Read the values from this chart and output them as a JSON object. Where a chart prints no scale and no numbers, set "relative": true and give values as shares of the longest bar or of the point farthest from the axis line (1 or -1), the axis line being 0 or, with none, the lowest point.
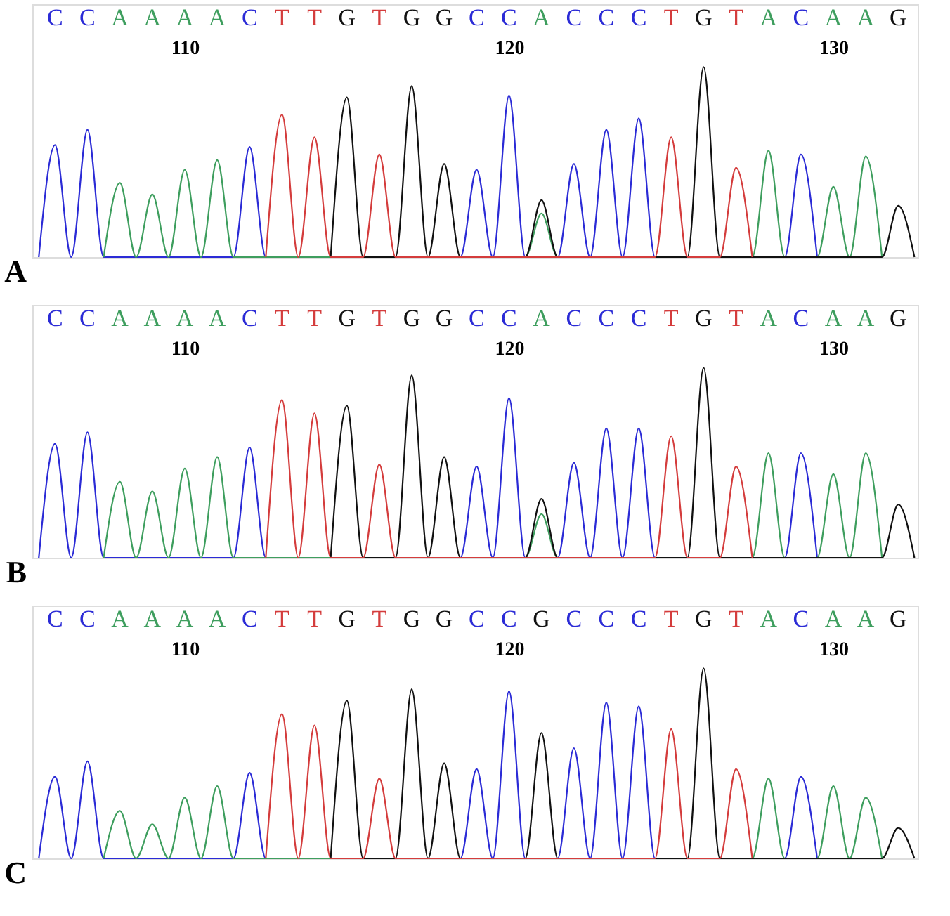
{
  "chart_data": [
    {
      "type": "line",
      "title": "A",
      "relative": true,
      "xlim": [
        105.3,
        132.6
      ],
      "xticks": [
        110,
        120,
        130
      ],
      "marker": "none",
      "line_style": "solid",
      "annotations": [
        "C",
        "C",
        "A",
        "A",
        "A",
        "A",
        "C",
        "T",
        "T",
        "G",
        "T",
        "G",
        "G",
        "C",
        "C",
        "A",
        "C",
        "C",
        "C",
        "T",
        "G",
        "T",
        "A",
        "C",
        "A",
        "A",
        "G"
      ],
      "series": [
        {
          "color": "#2b2bd6",
          "x": [
            105.5,
            106,
            106.5,
            107,
            107.5,
            111.5,
            112,
            112.5,
            118.5,
            119,
            119.5,
            120,
            120.5,
            121.5,
            122,
            122.5,
            123,
            123.5,
            124,
            124.5,
            128.5,
            129,
            129.5
          ],
          "values": [
            0,
            0.59,
            0,
            0.67,
            0,
            0,
            0.58,
            0,
            0,
            0.46,
            0,
            0.85,
            0,
            0,
            0.49,
            0,
            0.67,
            0,
            0.73,
            0,
            0,
            0.54,
            0
          ]
        },
        {
          "color": "#3e9e5e",
          "x": [
            107.5,
            108,
            108.5,
            109,
            109.5,
            110,
            110.5,
            111,
            111.5,
            120.5,
            121,
            121.5,
            127.5,
            128,
            128.5,
            129.5,
            130,
            130.5,
            131,
            131.5
          ],
          "values": [
            0,
            0.39,
            0,
            0.33,
            0,
            0.46,
            0,
            0.51,
            0,
            0,
            0.23,
            0,
            0,
            0.56,
            0,
            0,
            0.37,
            0,
            0.53,
            0
          ]
        },
        {
          "color": "#111111",
          "x": [
            114.5,
            115,
            115.5,
            116.5,
            117,
            117.5,
            118,
            118.5,
            120.5,
            121,
            121.5,
            125.5,
            126,
            126.5,
            131.5,
            132,
            132.5
          ],
          "values": [
            0,
            0.84,
            0,
            0,
            0.9,
            0,
            0.49,
            0,
            0,
            0.3,
            0,
            0,
            1,
            0,
            0,
            0.27,
            0
          ]
        },
        {
          "color": "#d43c3c",
          "x": [
            112.5,
            113,
            113.5,
            114,
            114.5,
            115.5,
            116,
            116.5,
            124.5,
            125,
            125.5,
            126.5,
            127,
            127.5
          ],
          "values": [
            0,
            0.75,
            0,
            0.63,
            0,
            0,
            0.54,
            0,
            0,
            0.63,
            0,
            0,
            0.47,
            0
          ]
        }
      ]
    },
    {
      "type": "line",
      "title": "B",
      "relative": true,
      "xlim": [
        105.3,
        132.6
      ],
      "xticks": [
        110,
        120,
        130
      ],
      "marker": "none",
      "line_style": "solid",
      "annotations": [
        "C",
        "C",
        "A",
        "A",
        "A",
        "A",
        "C",
        "T",
        "T",
        "G",
        "T",
        "G",
        "G",
        "C",
        "C",
        "A",
        "C",
        "C",
        "C",
        "T",
        "G",
        "T",
        "A",
        "C",
        "A",
        "A",
        "G"
      ],
      "series": [
        {
          "color": "#2b2bd6",
          "x": [
            105.5,
            106,
            106.5,
            107,
            107.5,
            111.5,
            112,
            112.5,
            118.5,
            119,
            119.5,
            120,
            120.5,
            121.5,
            122,
            122.5,
            123,
            123.5,
            124,
            124.5,
            128.5,
            129,
            129.5
          ],
          "values": [
            0,
            0.6,
            0,
            0.66,
            0,
            0,
            0.58,
            0,
            0,
            0.48,
            0,
            0.84,
            0,
            0,
            0.5,
            0,
            0.68,
            0,
            0.68,
            0,
            0,
            0.55,
            0
          ]
        },
        {
          "color": "#3e9e5e",
          "x": [
            107.5,
            108,
            108.5,
            109,
            109.5,
            110,
            110.5,
            111,
            111.5,
            120.5,
            121,
            121.5,
            127.5,
            128,
            128.5,
            129.5,
            130,
            130.5,
            131,
            131.5
          ],
          "values": [
            0,
            0.4,
            0,
            0.35,
            0,
            0.47,
            0,
            0.53,
            0,
            0,
            0.23,
            0,
            0,
            0.55,
            0,
            0,
            0.44,
            0,
            0.55,
            0
          ]
        },
        {
          "color": "#111111",
          "x": [
            114.5,
            115,
            115.5,
            116.5,
            117,
            117.5,
            118,
            118.5,
            120.5,
            121,
            121.5,
            125.5,
            126,
            126.5,
            131.5,
            132,
            132.5
          ],
          "values": [
            0,
            0.8,
            0,
            0,
            0.96,
            0,
            0.53,
            0,
            0,
            0.31,
            0,
            0,
            1,
            0,
            0,
            0.28,
            0
          ]
        },
        {
          "color": "#d43c3c",
          "x": [
            112.5,
            113,
            113.5,
            114,
            114.5,
            115.5,
            116,
            116.5,
            124.5,
            125,
            125.5,
            126.5,
            127,
            127.5
          ],
          "values": [
            0,
            0.83,
            0,
            0.76,
            0,
            0,
            0.49,
            0,
            0,
            0.64,
            0,
            0,
            0.48,
            0
          ]
        }
      ]
    },
    {
      "type": "line",
      "title": "C",
      "relative": true,
      "xlim": [
        105.3,
        132.6
      ],
      "xticks": [
        110,
        120,
        130
      ],
      "marker": "none",
      "line_style": "solid",
      "annotations": [
        "C",
        "C",
        "A",
        "A",
        "A",
        "A",
        "C",
        "T",
        "T",
        "G",
        "T",
        "G",
        "G",
        "C",
        "C",
        "G",
        "C",
        "C",
        "C",
        "T",
        "G",
        "T",
        "A",
        "C",
        "A",
        "A",
        "G"
      ],
      "series": [
        {
          "color": "#2b2bd6",
          "x": [
            105.5,
            106,
            106.5,
            107,
            107.5,
            111.5,
            112,
            112.5,
            118.5,
            119,
            119.5,
            120,
            120.5,
            121.5,
            122,
            122.5,
            123,
            123.5,
            124,
            124.5,
            128.5,
            129,
            129.5
          ],
          "values": [
            0,
            0.43,
            0,
            0.51,
            0,
            0,
            0.45,
            0,
            0,
            0.47,
            0,
            0.88,
            0,
            0,
            0.58,
            0,
            0.82,
            0,
            0.8,
            0,
            0,
            0.43,
            0
          ]
        },
        {
          "color": "#3e9e5e",
          "x": [
            107.5,
            108,
            108.5,
            109,
            109.5,
            110,
            110.5,
            111,
            111.5,
            127.5,
            128,
            128.5,
            129.5,
            130,
            130.5,
            131,
            131.5
          ],
          "values": [
            0,
            0.25,
            0,
            0.18,
            0,
            0.32,
            0,
            0.38,
            0,
            0,
            0.42,
            0,
            0,
            0.38,
            0,
            0.32,
            0
          ]
        },
        {
          "color": "#111111",
          "x": [
            114.5,
            115,
            115.5,
            116.5,
            117,
            117.5,
            118,
            118.5,
            120.5,
            121,
            121.5,
            125.5,
            126,
            126.5,
            131.5,
            132,
            132.5
          ],
          "values": [
            0,
            0.83,
            0,
            0,
            0.89,
            0,
            0.5,
            0,
            0,
            0.66,
            0,
            0,
            1,
            0,
            0,
            0.16,
            0
          ]
        },
        {
          "color": "#d43c3c",
          "x": [
            112.5,
            113,
            113.5,
            114,
            114.5,
            115.5,
            116,
            116.5,
            124.5,
            125,
            125.5,
            126.5,
            127,
            127.5
          ],
          "values": [
            0,
            0.76,
            0,
            0.7,
            0,
            0,
            0.42,
            0,
            0,
            0.68,
            0,
            0,
            0.47,
            0
          ]
        }
      ]
    }
  ]
}
